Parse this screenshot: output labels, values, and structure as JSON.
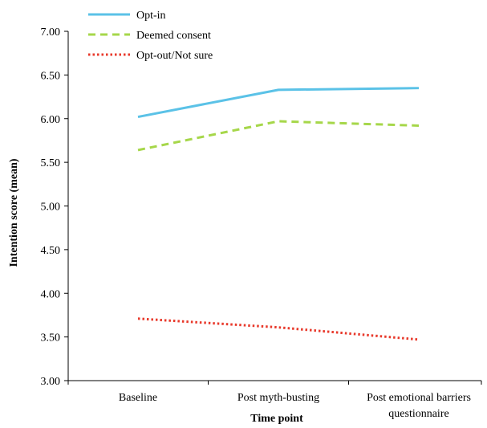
{
  "chart_data": {
    "type": "line",
    "title": "",
    "xlabel": "Time point",
    "ylabel": "Intention score (mean)",
    "categories": [
      [
        "Baseline"
      ],
      [
        "Post myth-busting"
      ],
      [
        "Post emotional barriers",
        "questionnaire"
      ]
    ],
    "ylim": [
      3.0,
      7.0
    ],
    "yticks": [
      "3.00",
      "3.50",
      "4.00",
      "4.50",
      "5.00",
      "5.50",
      "6.00",
      "6.50",
      "7.00"
    ],
    "grid": false,
    "legend_position": "top-left",
    "series": [
      {
        "name": "Opt-in",
        "values": [
          6.02,
          6.33,
          6.35
        ],
        "color": "#5bc2e7",
        "style": "solid"
      },
      {
        "name": "Deemed consent",
        "values": [
          5.64,
          5.97,
          5.92
        ],
        "color": "#a6d74a",
        "style": "dashed"
      },
      {
        "name": "Opt-out/Not sure",
        "values": [
          3.71,
          3.61,
          3.47
        ],
        "color": "#e8392b",
        "style": "dotted"
      }
    ]
  }
}
